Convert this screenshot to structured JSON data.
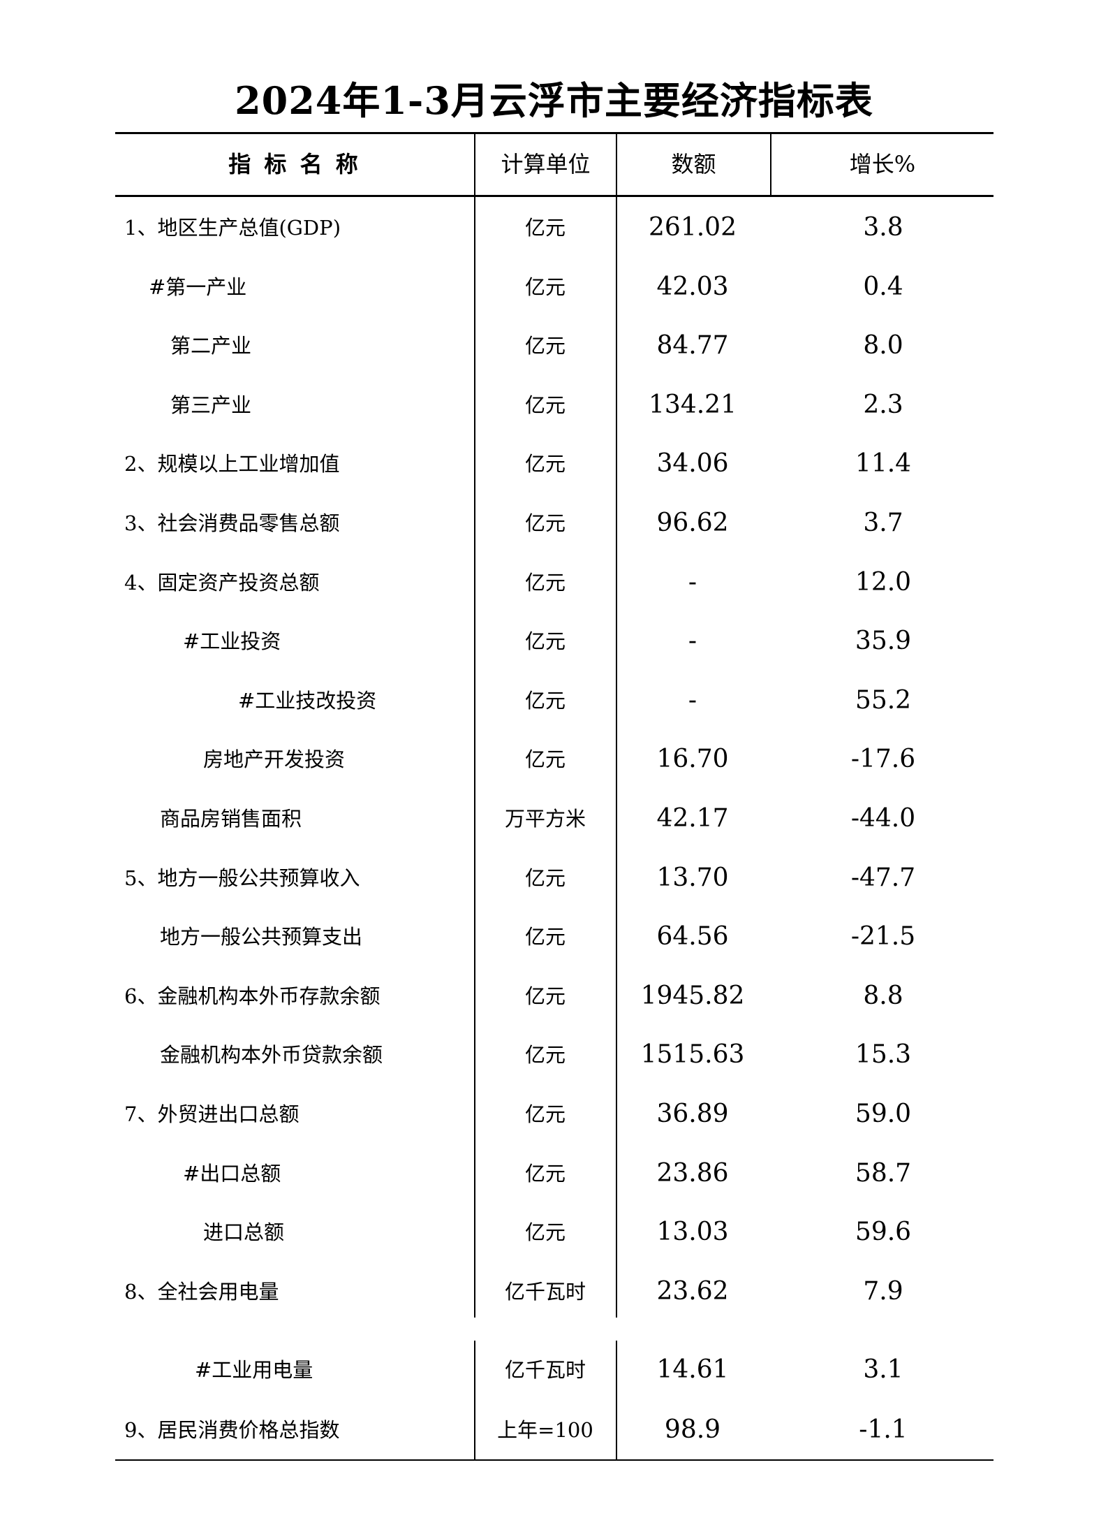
{
  "title": "2024年1-3月云浮市主要经济指标表",
  "headers": {
    "name": "指 标 名 称",
    "unit": "计算单位",
    "value": "数额",
    "growth": "增长%"
  },
  "rows": [
    {
      "name": "1、地区生产总值(GDP)",
      "unit": "亿元",
      "value": "261.02",
      "growth": "3.8"
    },
    {
      "name": "#第一产业",
      "unit": "亿元",
      "value": "42.03",
      "growth": "0.4"
    },
    {
      "name": "第二产业",
      "unit": "亿元",
      "value": "84.77",
      "growth": "8.0"
    },
    {
      "name": "第三产业",
      "unit": "亿元",
      "value": "134.21",
      "growth": "2.3"
    },
    {
      "name": "2、规模以上工业增加值",
      "unit": "亿元",
      "value": "34.06",
      "growth": "11.4"
    },
    {
      "name": "3、社会消费品零售总额",
      "unit": "亿元",
      "value": "96.62",
      "growth": "3.7"
    },
    {
      "name": "4、固定资产投资总额",
      "unit": "亿元",
      "value": "-",
      "growth": "12.0"
    },
    {
      "name": "#工业投资",
      "unit": "亿元",
      "value": "-",
      "growth": "35.9"
    },
    {
      "name": "#工业技改投资",
      "unit": "亿元",
      "value": "-",
      "growth": "55.2"
    },
    {
      "name": "房地产开发投资",
      "unit": "亿元",
      "value": "16.70",
      "growth": "-17.6"
    },
    {
      "name": "商品房销售面积",
      "unit": "万平方米",
      "value": "42.17",
      "growth": "-44.0"
    },
    {
      "name": "5、地方一般公共预算收入",
      "unit": "亿元",
      "value": "13.70",
      "growth": "-47.7"
    },
    {
      "name": "地方一般公共预算支出",
      "unit": "亿元",
      "value": "64.56",
      "growth": "-21.5"
    },
    {
      "name": "6、金融机构本外币存款余额",
      "unit": "亿元",
      "value": "1945.82",
      "growth": "8.8"
    },
    {
      "name": "金融机构本外币贷款余额",
      "unit": "亿元",
      "value": "1515.63",
      "growth": "15.3"
    },
    {
      "name": "7、外贸进出口总额",
      "unit": "亿元",
      "value": "36.89",
      "growth": "59.0"
    },
    {
      "name": "#出口总额",
      "unit": "亿元",
      "value": "23.86",
      "growth": "58.7"
    },
    {
      "name": "进口总额",
      "unit": "亿元",
      "value": "13.03",
      "growth": "59.6"
    },
    {
      "name": "8、全社会用电量",
      "unit": "亿千瓦时",
      "value": "23.62",
      "growth": "7.9"
    },
    {
      "name": "#工业用电量",
      "unit": "亿千瓦时",
      "value": "14.61",
      "growth": "3.1"
    },
    {
      "name": "9、居民消费价格总指数",
      "unit": "上年=100",
      "value": "98.9",
      "growth": "-1.1"
    }
  ]
}
